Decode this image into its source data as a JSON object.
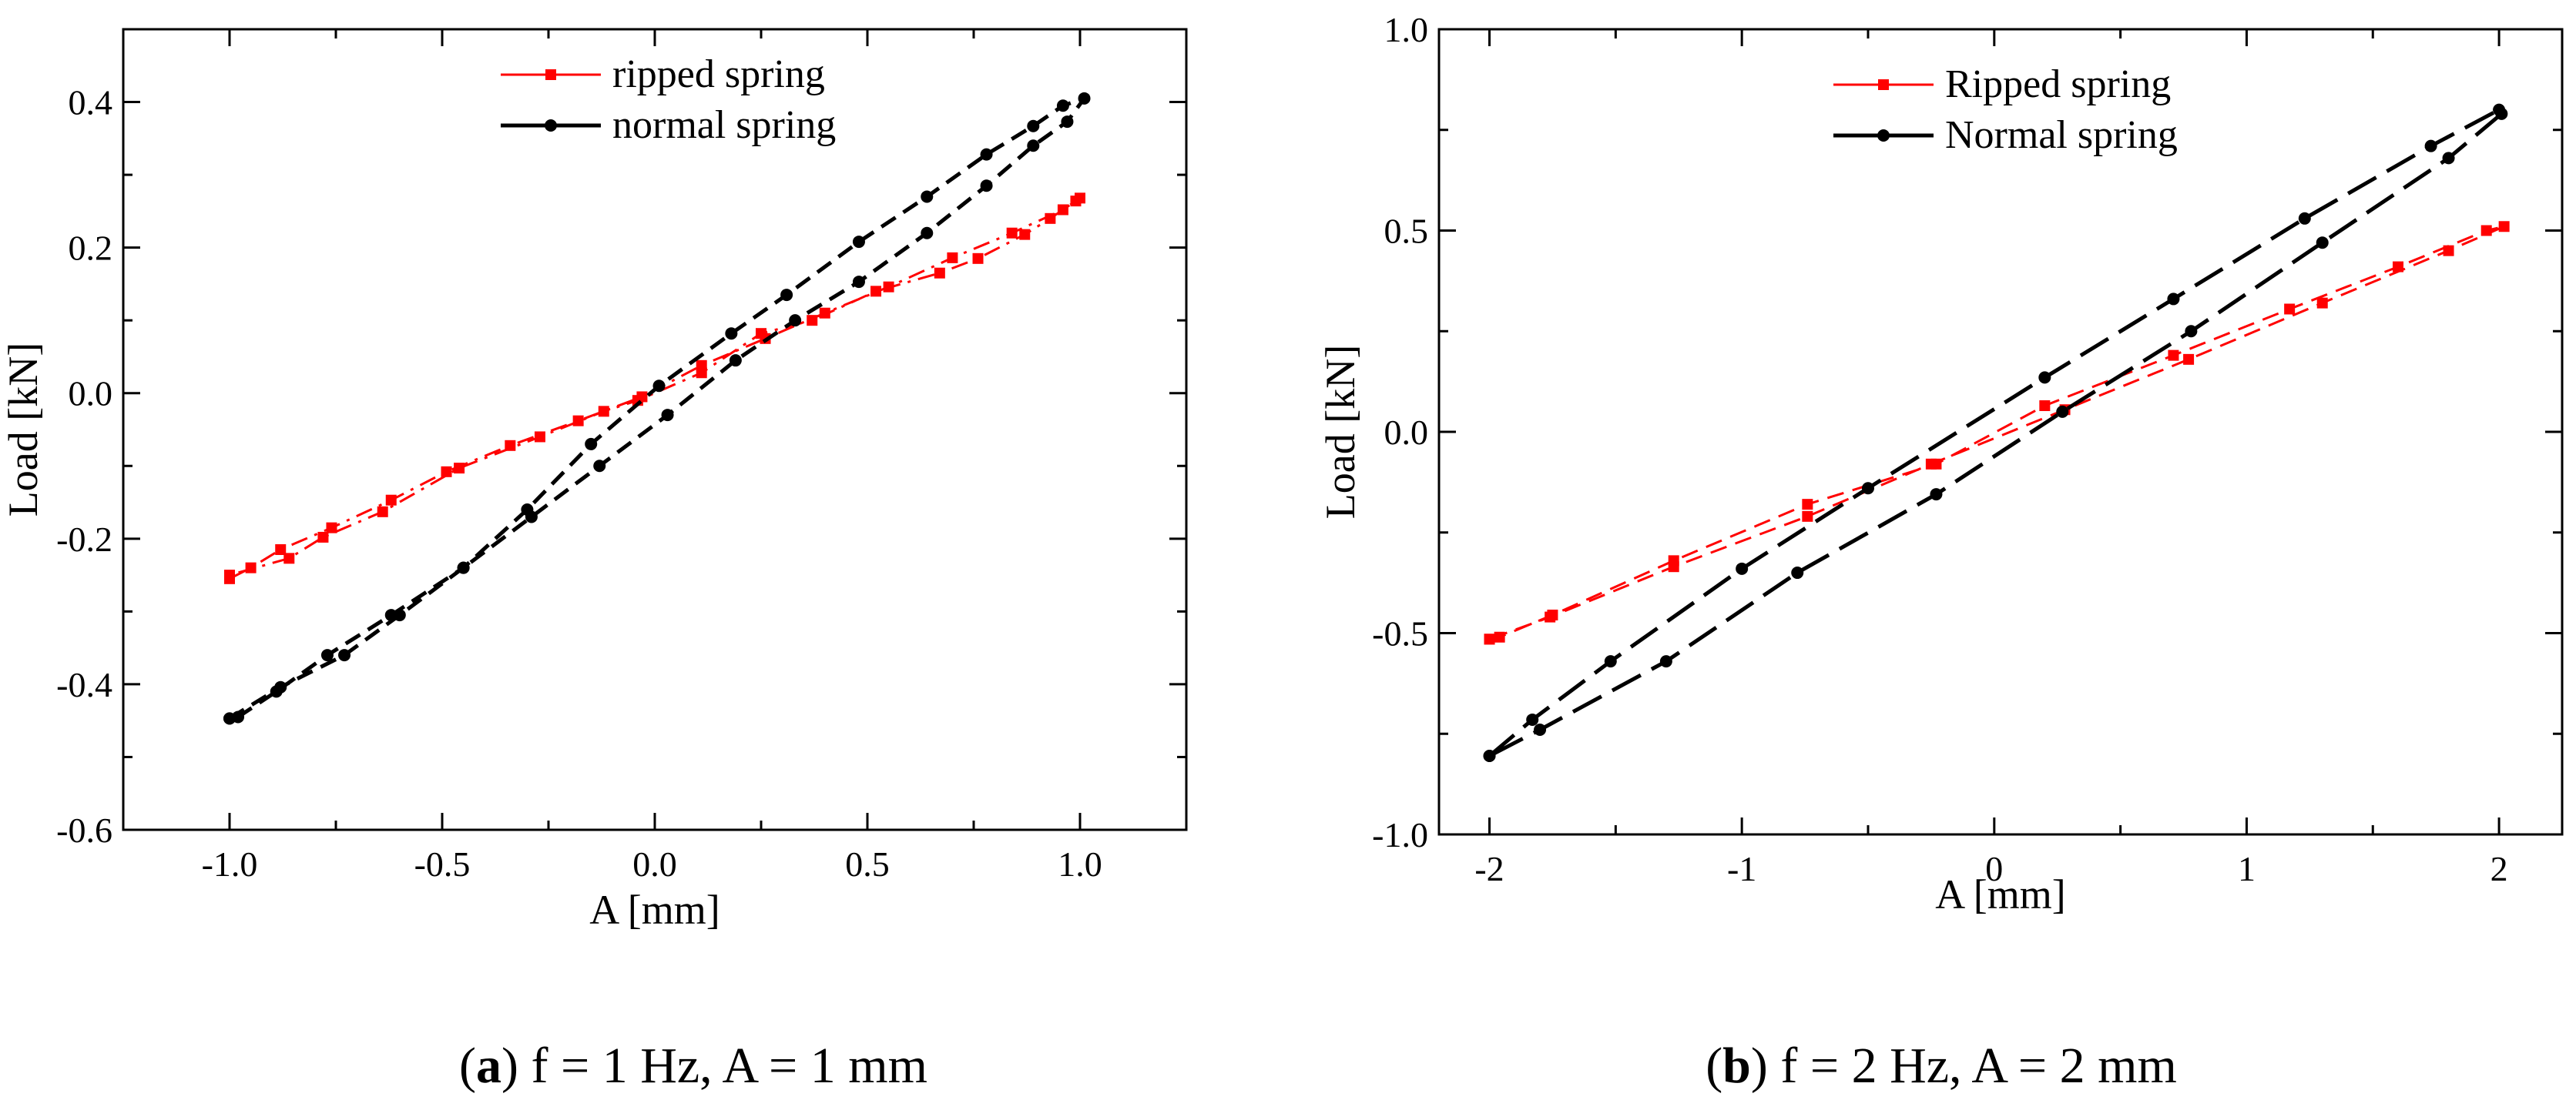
{
  "captions": [
    {
      "open": "(",
      "letter": "a",
      "close": ")",
      "text": " f = 1 Hz, A = 1 mm"
    },
    {
      "open": "(",
      "letter": "b",
      "close": ")",
      "text": " f = 2 Hz, A = 2 mm"
    }
  ],
  "colors": {
    "ripped": "#ff0000",
    "normal": "#000000",
    "axis": "#000000"
  },
  "chart_data": [
    {
      "type": "line",
      "title": "",
      "xlabel": "A [mm]",
      "ylabel": "Load [kN]",
      "xlim": [
        -1.25,
        1.25
      ],
      "ylim": [
        -0.6,
        0.5
      ],
      "xticks": [
        -1.0,
        -0.5,
        0.0,
        0.5,
        1.0
      ],
      "xtick_labels": [
        "-1.0",
        "-0.5",
        "0.0",
        "0.5",
        "1.0"
      ],
      "yticks": [
        -0.6,
        -0.4,
        -0.2,
        0.0,
        0.2,
        0.4
      ],
      "ytick_labels": [
        "-0.6",
        "-0.4",
        "-0.2",
        "0.0",
        "0.2",
        "0.4"
      ],
      "legend_position": "top-center",
      "series": [
        {
          "name": "ripped spring",
          "color": "#ff0000",
          "marker": "square",
          "dash": "dashdot",
          "x": [
            -1.0,
            -0.95,
            -0.88,
            -0.76,
            -0.62,
            -0.49,
            -0.34,
            -0.18,
            -0.03,
            0.11,
            0.26,
            0.4,
            0.55,
            0.7,
            0.84,
            0.96,
            1.0,
            0.99,
            0.93,
            0.87,
            0.76,
            0.67,
            0.52,
            0.37,
            0.25,
            0.11,
            -0.04,
            -0.12,
            -0.27,
            -0.46,
            -0.64,
            -0.78,
            -0.86,
            -1.0
          ],
          "y": [
            -0.255,
            -0.24,
            -0.215,
            -0.185,
            -0.147,
            -0.108,
            -0.072,
            -0.038,
            -0.005,
            0.038,
            0.075,
            0.11,
            0.146,
            0.186,
            0.22,
            0.252,
            0.268,
            0.264,
            0.24,
            0.218,
            0.185,
            0.165,
            0.14,
            0.1,
            0.082,
            0.028,
            -0.01,
            -0.025,
            -0.06,
            -0.103,
            -0.163,
            -0.198,
            -0.227,
            -0.25
          ]
        },
        {
          "name": "normal spring",
          "color": "#000000",
          "marker": "circle",
          "dash": "dash",
          "x": [
            -1.0,
            -0.88,
            -0.73,
            -0.6,
            -0.45,
            -0.29,
            -0.13,
            0.03,
            0.19,
            0.33,
            0.48,
            0.64,
            0.78,
            0.89,
            0.97,
            1.01,
            0.96,
            0.89,
            0.78,
            0.64,
            0.48,
            0.31,
            0.18,
            0.01,
            -0.15,
            -0.3,
            -0.45,
            -0.62,
            -0.77,
            -0.89,
            -0.98,
            -1.0
          ],
          "y": [
            -0.447,
            -0.404,
            -0.36,
            -0.305,
            -0.24,
            -0.17,
            -0.1,
            -0.03,
            0.045,
            0.1,
            0.153,
            0.22,
            0.285,
            0.34,
            0.373,
            0.405,
            0.395,
            0.367,
            0.328,
            0.27,
            0.208,
            0.135,
            0.082,
            0.01,
            -0.07,
            -0.16,
            -0.24,
            -0.305,
            -0.36,
            -0.41,
            -0.445,
            -0.447
          ]
        }
      ]
    },
    {
      "type": "line",
      "title": "",
      "xlabel": "A [mm]",
      "ylabel": "Load [kN]",
      "xlim": [
        -2.2,
        2.25
      ],
      "ylim": [
        -1.0,
        1.0
      ],
      "xticks": [
        -2,
        -1,
        0,
        1,
        2
      ],
      "xtick_labels": [
        "-2",
        "-1",
        "0",
        "1",
        "2"
      ],
      "yticks": [
        -1.0,
        -0.5,
        0.0,
        0.5,
        1.0
      ],
      "ytick_labels": [
        "-1.0",
        "-0.5",
        "0.0",
        "0.5",
        "1.0"
      ],
      "legend_position": "top-center",
      "series": [
        {
          "name": "Ripped spring",
          "color": "#ff0000",
          "marker": "square",
          "dash": "dash",
          "x": [
            -2.0,
            -1.96,
            -1.75,
            -1.27,
            -0.74,
            -0.23,
            0.2,
            0.71,
            1.17,
            1.6,
            1.95,
            2.02,
            1.8,
            1.3,
            0.77,
            0.28,
            -0.25,
            -0.74,
            -1.27,
            -1.76,
            -2.0
          ],
          "y": [
            -0.515,
            -0.51,
            -0.455,
            -0.32,
            -0.18,
            -0.08,
            0.065,
            0.19,
            0.305,
            0.41,
            0.5,
            0.51,
            0.45,
            0.32,
            0.18,
            0.055,
            -0.08,
            -0.21,
            -0.335,
            -0.46,
            -0.515
          ]
        },
        {
          "name": "Normal spring",
          "color": "#000000",
          "marker": "circle",
          "dash": "longdash",
          "x": [
            -2.0,
            -1.83,
            -1.52,
            -1.0,
            -0.5,
            0.2,
            0.71,
            1.23,
            1.73,
            2.0,
            2.01,
            1.8,
            1.3,
            0.78,
            0.27,
            -0.23,
            -0.78,
            -1.3,
            -1.8,
            -2.0
          ],
          "y": [
            -0.805,
            -0.715,
            -0.57,
            -0.34,
            -0.14,
            0.135,
            0.33,
            0.53,
            0.71,
            0.8,
            0.79,
            0.68,
            0.47,
            0.25,
            0.05,
            -0.155,
            -0.35,
            -0.57,
            -0.74,
            -0.805
          ]
        }
      ]
    }
  ]
}
